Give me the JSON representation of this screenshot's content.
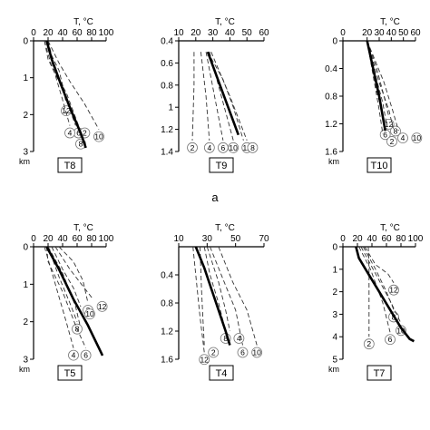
{
  "panel_letter": "a",
  "chart_data": [
    {
      "type": "line",
      "label": "T8",
      "xlabel": "T, °C",
      "ylabel": "km",
      "xlim": [
        0,
        100
      ],
      "xticks": [
        0,
        20,
        40,
        60,
        80,
        100
      ],
      "ylim": [
        0,
        3
      ],
      "yticks": [
        0,
        1,
        2,
        3
      ],
      "yreversed": true,
      "series": [
        {
          "style": "dashed",
          "label": "12",
          "points": [
            [
              20,
              0
            ],
            [
              25,
              0.4
            ],
            [
              35,
              0.8
            ],
            [
              40,
              1.2
            ],
            [
              45,
              1.7
            ]
          ]
        },
        {
          "style": "dashed",
          "label": "6",
          "points": [
            [
              15,
              0
            ],
            [
              20,
              0.5
            ],
            [
              30,
              0.9
            ],
            [
              45,
              1.4
            ],
            [
              62,
              2.3
            ]
          ]
        },
        {
          "style": "dashed",
          "label": "8",
          "points": [
            [
              15,
              0
            ],
            [
              25,
              0.7
            ],
            [
              40,
              1.3
            ],
            [
              55,
              2.0
            ],
            [
              65,
              2.6
            ]
          ]
        },
        {
          "style": "dashed",
          "label": "10",
          "points": [
            [
              20,
              0
            ],
            [
              35,
              0.6
            ],
            [
              50,
              1.1
            ],
            [
              70,
              1.7
            ],
            [
              90,
              2.4
            ]
          ]
        },
        {
          "style": "dashed",
          "label": "4",
          "points": [
            [
              18,
              0
            ],
            [
              28,
              0.8
            ],
            [
              40,
              1.6
            ],
            [
              50,
              2.3
            ]
          ]
        },
        {
          "style": "dashed",
          "label": "2",
          "points": [
            [
              18,
              0
            ],
            [
              30,
              0.8
            ],
            [
              45,
              1.6
            ],
            [
              58,
              2.3
            ]
          ]
        },
        {
          "style": "bold",
          "points": [
            [
              18,
              0
            ],
            [
              25,
              0.5
            ],
            [
              38,
              1.2
            ],
            [
              52,
              1.9
            ],
            [
              65,
              2.5
            ],
            [
              72,
              2.9
            ]
          ]
        }
      ]
    },
    {
      "type": "line",
      "label": "T9",
      "xlabel": "T, °C",
      "ylabel": "",
      "xlim": [
        10,
        60
      ],
      "xticks": [
        10,
        20,
        30,
        40,
        50,
        60
      ],
      "ylim": [
        0.4,
        1.4
      ],
      "yticks": [
        0.4,
        0.6,
        0.8,
        1,
        1.2,
        1.4
      ],
      "yreversed": true,
      "series": [
        {
          "style": "dashed",
          "label": "2",
          "points": [
            [
              19,
              0.5
            ],
            [
              19,
              0.8
            ],
            [
              18,
              1.3
            ]
          ]
        },
        {
          "style": "dashed",
          "label": "4",
          "points": [
            [
              23,
              0.5
            ],
            [
              26,
              0.9
            ],
            [
              28,
              1.3
            ]
          ]
        },
        {
          "style": "dashed",
          "label": "6",
          "points": [
            [
              26,
              0.5
            ],
            [
              31,
              0.9
            ],
            [
              36,
              1.3
            ]
          ]
        },
        {
          "style": "dashed",
          "label": "10",
          "points": [
            [
              28,
              0.5
            ],
            [
              35,
              0.9
            ],
            [
              42,
              1.3
            ]
          ]
        },
        {
          "style": "dashed",
          "label": "12",
          "points": [
            [
              29,
              0.5
            ],
            [
              40,
              0.9
            ],
            [
              50,
              1.3
            ]
          ]
        },
        {
          "style": "dashed",
          "label": "8",
          "points": [
            [
              27,
              0.5
            ],
            [
              36,
              0.75
            ],
            [
              42,
              1.0
            ],
            [
              48,
              1.3
            ]
          ]
        },
        {
          "style": "bold",
          "points": [
            [
              27,
              0.5
            ],
            [
              33,
              0.75
            ],
            [
              39,
              1.0
            ],
            [
              45,
              1.25
            ]
          ]
        }
      ]
    },
    {
      "type": "line",
      "label": "T10",
      "xlabel": "T, °C",
      "ylabel": "km",
      "xlim": [
        0,
        60
      ],
      "xticks": [
        0,
        20,
        30,
        40,
        50,
        60
      ],
      "ylim": [
        0,
        1.6
      ],
      "yticks": [
        0,
        0.4,
        0.8,
        1.2,
        1.6
      ],
      "yreversed": true,
      "series": [
        {
          "style": "dashed",
          "label": "12",
          "points": [
            [
              20,
              0
            ],
            [
              28,
              0.4
            ],
            [
              34,
              0.8
            ],
            [
              38,
              1.1
            ]
          ]
        },
        {
          "style": "dashed",
          "label": "8",
          "points": [
            [
              20,
              0
            ],
            [
              27,
              0.5
            ],
            [
              33,
              0.9
            ],
            [
              36,
              1.2
            ]
          ]
        },
        {
          "style": "dashed",
          "label": "6",
          "points": [
            [
              20,
              0
            ],
            [
              26,
              0.6
            ],
            [
              32,
              1.0
            ],
            [
              35,
              1.25
            ]
          ]
        },
        {
          "style": "dashed",
          "label": "4",
          "points": [
            [
              20,
              0
            ],
            [
              30,
              0.6
            ],
            [
              38,
              1.0
            ],
            [
              42,
              1.3
            ]
          ]
        },
        {
          "style": "dashed",
          "label": "10",
          "points": [
            [
              20,
              0
            ],
            [
              34,
              0.6
            ],
            [
              41,
              1.0
            ],
            [
              46,
              1.3
            ]
          ]
        },
        {
          "style": "dashed",
          "label": "2",
          "points": [
            [
              20,
              0
            ],
            [
              26,
              0.6
            ],
            [
              30,
              1.0
            ],
            [
              33,
              1.35
            ]
          ]
        },
        {
          "style": "bold",
          "points": [
            [
              20,
              0
            ],
            [
              25,
              0.4
            ],
            [
              30,
              0.8
            ],
            [
              33,
              1.1
            ],
            [
              35,
              1.3
            ]
          ]
        }
      ]
    },
    {
      "type": "line",
      "label": "T5",
      "xlabel": "T, °C",
      "ylabel": "km",
      "xlim": [
        0,
        100
      ],
      "xticks": [
        0,
        20,
        40,
        60,
        80,
        100
      ],
      "ylim": [
        0,
        3
      ],
      "yticks": [
        0,
        1,
        2,
        3
      ],
      "yreversed": true,
      "series": [
        {
          "style": "dashed",
          "label": "2",
          "points": [
            [
              35,
              0
            ],
            [
              55,
              0.4
            ],
            [
              68,
              0.9
            ],
            [
              75,
              1.5
            ]
          ]
        },
        {
          "style": "dashed",
          "label": "12",
          "points": [
            [
              30,
              0
            ],
            [
              50,
              0.6
            ],
            [
              70,
              1.1
            ],
            [
              82,
              1.4
            ]
          ]
        },
        {
          "style": "dashed",
          "label": "10",
          "points": [
            [
              25,
              0
            ],
            [
              40,
              0.6
            ],
            [
              55,
              1.1
            ],
            [
              65,
              1.6
            ]
          ]
        },
        {
          "style": "dashed",
          "label": "8",
          "points": [
            [
              20,
              0
            ],
            [
              35,
              0.8
            ],
            [
              50,
              1.5
            ],
            [
              60,
              2.0
            ]
          ]
        },
        {
          "style": "dashed",
          "label": "6",
          "points": [
            [
              18,
              0
            ],
            [
              20,
              0.4
            ],
            [
              40,
              1.2
            ],
            [
              60,
              2.2
            ],
            [
              72,
              2.7
            ]
          ]
        },
        {
          "style": "dashed",
          "label": "4",
          "points": [
            [
              15,
              0
            ],
            [
              30,
              1.0
            ],
            [
              45,
              2.0
            ],
            [
              55,
              2.7
            ]
          ]
        },
        {
          "style": "dashed",
          "points": [
            [
              20,
              0
            ],
            [
              40,
              0.7
            ],
            [
              58,
              1.6
            ],
            [
              64,
              2.1
            ]
          ]
        },
        {
          "style": "bold",
          "points": [
            [
              18,
              0
            ],
            [
              35,
              0.6
            ],
            [
              55,
              1.4
            ],
            [
              75,
              2.1
            ],
            [
              90,
              2.7
            ],
            [
              95,
              2.9
            ]
          ]
        }
      ]
    },
    {
      "type": "line",
      "label": "T4",
      "xlabel": "T, °C",
      "ylabel": "",
      "xlim": [
        10,
        70
      ],
      "xticks": [
        10,
        30,
        50,
        70
      ],
      "ylim": [
        0,
        1.6
      ],
      "yticks": [
        0.4,
        0.8,
        1.2,
        1.6
      ],
      "yreversed": true,
      "series": [
        {
          "style": "dashed",
          "label": "12",
          "points": [
            [
              20,
              0
            ],
            [
              22,
              0.4
            ],
            [
              25,
              1.0
            ],
            [
              28,
              1.5
            ]
          ]
        },
        {
          "style": "dashed",
          "label": "2",
          "points": [
            [
              25,
              0
            ],
            [
              26,
              0.6
            ],
            [
              27,
              1.0
            ],
            [
              28,
              1.4
            ]
          ]
        },
        {
          "style": "dashed",
          "label": "8",
          "points": [
            [
              28,
              0
            ],
            [
              32,
              0.4
            ],
            [
              38,
              0.8
            ],
            [
              43,
              1.2
            ]
          ]
        },
        {
          "style": "dashed",
          "label": "4",
          "points": [
            [
              30,
              0
            ],
            [
              38,
              0.5
            ],
            [
              43,
              0.9
            ],
            [
              46,
              1.2
            ]
          ]
        },
        {
          "style": "dashed",
          "label": "6",
          "points": [
            [
              32,
              0
            ],
            [
              42,
              0.5
            ],
            [
              50,
              0.9
            ],
            [
              55,
              1.4
            ]
          ]
        },
        {
          "style": "dashed",
          "label": "10",
          "points": [
            [
              38,
              0
            ],
            [
              48,
              0.5
            ],
            [
              58,
              0.9
            ],
            [
              65,
              1.4
            ]
          ]
        },
        {
          "style": "bold",
          "points": [
            [
              22,
              0
            ],
            [
              28,
              0.3
            ],
            [
              33,
              0.6
            ],
            [
              38,
              0.9
            ],
            [
              43,
              1.2
            ],
            [
              46,
              1.4
            ]
          ]
        }
      ]
    },
    {
      "type": "line",
      "label": "T7",
      "xlabel": "T, °C",
      "ylabel": "km",
      "xlim": [
        0,
        100
      ],
      "xticks": [
        0,
        20,
        40,
        60,
        80,
        100
      ],
      "ylim": [
        0,
        5
      ],
      "yticks": [
        0,
        1,
        2,
        3,
        4,
        5
      ],
      "yreversed": true,
      "series": [
        {
          "style": "dashed",
          "label": "2",
          "points": [
            [
              35,
              0
            ],
            [
              36,
              1.0
            ],
            [
              36,
              2.5
            ],
            [
              36,
              4.0
            ]
          ]
        },
        {
          "style": "dashed",
          "label": "12",
          "points": [
            [
              30,
              0
            ],
            [
              45,
              0.8
            ],
            [
              62,
              1.2
            ],
            [
              70,
              1.6
            ]
          ]
        },
        {
          "style": "dashed",
          "label": "8",
          "points": [
            [
              28,
              0
            ],
            [
              45,
              1.0
            ],
            [
              60,
              2.0
            ],
            [
              70,
              2.8
            ]
          ]
        },
        {
          "style": "dashed",
          "label": "10",
          "points": [
            [
              25,
              0
            ],
            [
              45,
              1.2
            ],
            [
              65,
              2.4
            ],
            [
              80,
              3.4
            ]
          ]
        },
        {
          "style": "dashed",
          "label": "6",
          "points": [
            [
              22,
              0
            ],
            [
              38,
              1.0
            ],
            [
              55,
              2.5
            ],
            [
              65,
              3.8
            ]
          ]
        },
        {
          "style": "bold",
          "points": [
            [
              18,
              0
            ],
            [
              22,
              0.5
            ],
            [
              35,
              1.2
            ],
            [
              50,
              2.0
            ],
            [
              65,
              2.8
            ],
            [
              80,
              3.6
            ],
            [
              92,
              4.1
            ],
            [
              98,
              4.2
            ]
          ]
        }
      ]
    }
  ]
}
